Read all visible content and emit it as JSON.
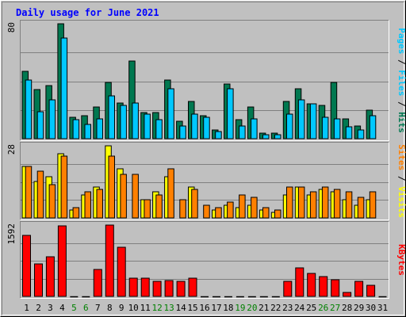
{
  "chart_data": {
    "type": "bar",
    "title": "Daily usage for June 2021",
    "categories": [
      "1",
      "2",
      "3",
      "4",
      "5",
      "6",
      "7",
      "8",
      "9",
      "10",
      "11",
      "12",
      "13",
      "14",
      "15",
      "16",
      "17",
      "18",
      "19",
      "20",
      "21",
      "22",
      "23",
      "24",
      "25",
      "26",
      "27",
      "28",
      "29",
      "30",
      "31"
    ],
    "weekend_days": [
      "5",
      "6",
      "12",
      "13",
      "19",
      "20",
      "26",
      "27"
    ],
    "panels": [
      {
        "id": "hits-files",
        "ymax": 80,
        "ymax_label": "80",
        "axis_labels": [
          "Hits",
          "Files",
          "Pages"
        ],
        "series": [
          {
            "name": "Hits",
            "color": "#007850",
            "values": [
              47,
              34,
              37,
              80,
              15,
              16,
              22,
              39,
              25,
              54,
              18,
              18,
              41,
              12,
              26,
              16,
              6,
              38,
              13,
              22,
              4,
              4,
              26,
              35,
              24,
              23,
              39,
              14,
              9,
              20,
              0
            ]
          },
          {
            "name": "Files",
            "color": "#00c8ff",
            "values": [
              41,
              19,
              27,
              70,
              13,
              10,
              14,
              30,
              23,
              25,
              17,
              13,
              35,
              9,
              17,
              15,
              5,
              35,
              9,
              14,
              3,
              3,
              17,
              27,
              24,
              15,
              14,
              8,
              6,
              16,
              0
            ]
          },
          {
            "name": "Pages",
            "color": "#00c8ff",
            "values": [
              0,
              0,
              0,
              0,
              0,
              0,
              0,
              0,
              0,
              0,
              0,
              0,
              0,
              0,
              0,
              0,
              0,
              0,
              0,
              0,
              0,
              0,
              0,
              0,
              0,
              0,
              0,
              0,
              0,
              0,
              0
            ]
          }
        ]
      },
      {
        "id": "visits-sites",
        "ymax": 28,
        "ymax_label": "28",
        "axis_labels": [
          "Visits",
          "Sites"
        ],
        "series": [
          {
            "name": "Visits",
            "color": "#ffff00",
            "values": [
              20,
              14,
              16,
              25,
              3,
              9,
              12,
              28,
              19,
              0,
              7,
              10,
              16,
              0,
              12,
              0,
              3,
              5,
              4,
              5,
              3,
              2,
              9,
              12,
              9,
              11,
              10,
              7,
              5,
              7,
              0
            ]
          },
          {
            "name": "Sites",
            "color": "#ff8000",
            "values": [
              20,
              18,
              13,
              24,
              4,
              10,
              11,
              24,
              17,
              17,
              7,
              9,
              19,
              7,
              11,
              5,
              4,
              6,
              9,
              8,
              4,
              3,
              12,
              12,
              10,
              12,
              11,
              10,
              8,
              10,
              0
            ]
          }
        ]
      },
      {
        "id": "kbytes",
        "ymax": 1592,
        "ymax_label": "1592",
        "axis_labels": [
          "KBytes"
        ],
        "series": [
          {
            "name": "KBytes",
            "color": "#ff0000",
            "values": [
              1370,
              725,
              890,
              1568,
              0,
              0,
              610,
              1592,
              1095,
              410,
              410,
              340,
              355,
              340,
              405,
              0,
              0,
              0,
              0,
              0,
              0,
              0,
              340,
              630,
              505,
              450,
              375,
              95,
              335,
              255,
              0
            ]
          }
        ]
      }
    ]
  },
  "colors": {
    "background": "#c0c0c0",
    "gridline": "#808080",
    "title": "#0000ff",
    "axis_text": "#000000",
    "weekend_text": "#008000",
    "hits": "#007850",
    "files": "#00c8ff",
    "pages": "#00c8ff",
    "visits": "#ffff00",
    "sites": "#ff8000",
    "kbytes": "#ff0000"
  }
}
